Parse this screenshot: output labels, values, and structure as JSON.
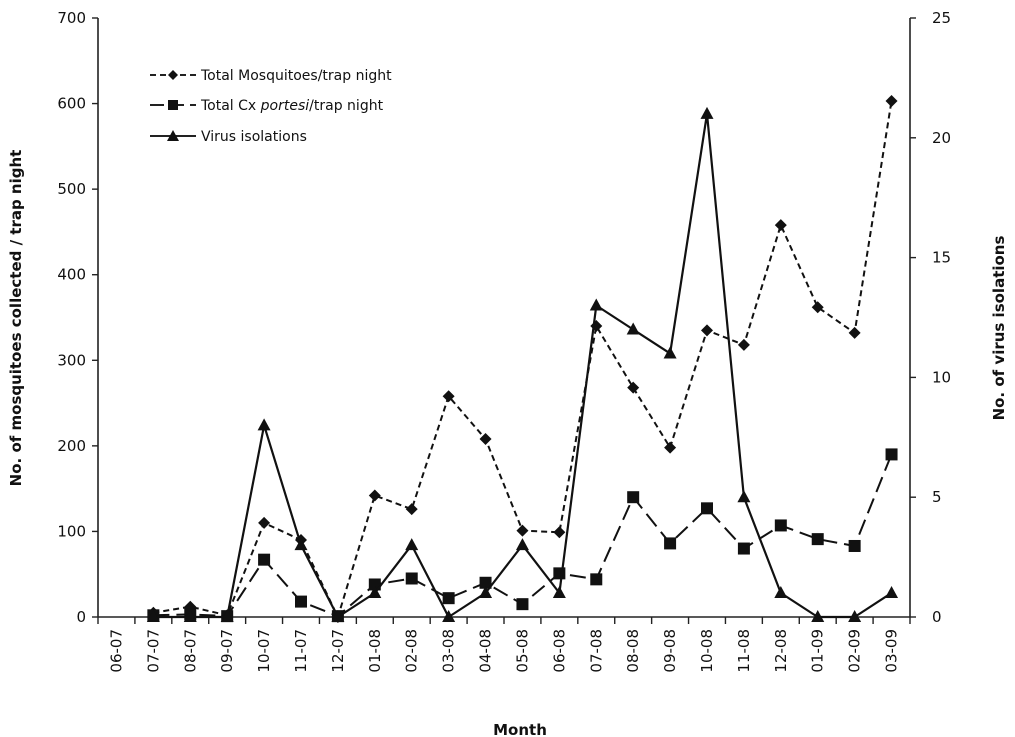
{
  "chart_data": {
    "type": "line",
    "xlabel": "Month",
    "ylabel_left": "No. of mosquitoes collected / trap night",
    "ylabel_right": "No. of virus isolations",
    "categories": [
      "06-07",
      "07-07",
      "08-07",
      "09-07",
      "10-07",
      "11-07",
      "12-07",
      "01-08",
      "02-08",
      "03-08",
      "04-08",
      "05-08",
      "06-08",
      "07-08",
      "08-08",
      "09-08",
      "10-08",
      "11-08",
      "12-08",
      "01-09",
      "02-09",
      "03-09"
    ],
    "ylim_left": [
      0,
      700
    ],
    "yticks_left": [
      0,
      100,
      200,
      300,
      400,
      500,
      600,
      700
    ],
    "ylim_right": [
      0,
      25
    ],
    "yticks_right": [
      0,
      5,
      10,
      15,
      20,
      25
    ],
    "grid": false,
    "legend_position": "top-left",
    "series": [
      {
        "name": "Total Mosquitoes/trap night",
        "axis": "left",
        "marker": "diamond",
        "line_style": "short-dash",
        "values": [
          null,
          5,
          12,
          2,
          110,
          90,
          0,
          142,
          126,
          258,
          208,
          101,
          99,
          340,
          268,
          198,
          335,
          318,
          458,
          362,
          332,
          603
        ]
      },
      {
        "name_prefix": "Total Cx ",
        "name_italic": "portesi",
        "name_suffix": "/trap night",
        "axis": "left",
        "marker": "square",
        "line_style": "long-dash",
        "values": [
          null,
          2,
          3,
          1,
          67,
          18,
          1,
          38,
          45,
          22,
          40,
          15,
          51,
          44,
          140,
          86,
          127,
          80,
          107,
          91,
          83,
          190
        ]
      },
      {
        "name": "Virus isolations",
        "axis": "right",
        "marker": "triangle",
        "line_style": "solid",
        "values": [
          null,
          0,
          0,
          0,
          8,
          3,
          0,
          1,
          3,
          0,
          1,
          3,
          1,
          13,
          12,
          11,
          21,
          5,
          1,
          0,
          0,
          1
        ]
      }
    ]
  }
}
